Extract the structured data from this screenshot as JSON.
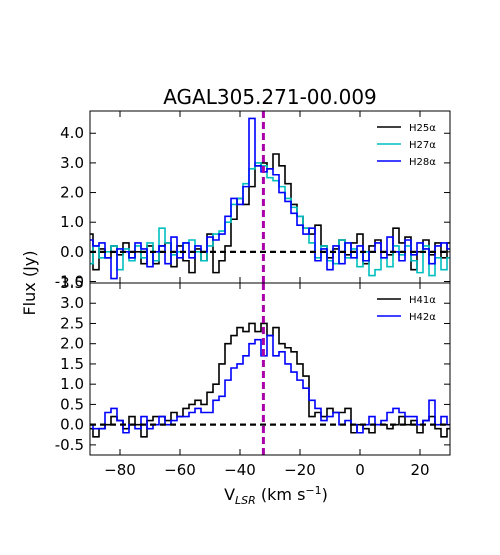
{
  "chart_data": [
    {
      "type": "line",
      "title": "AGAL305.271-00.009",
      "ylabel": "Flux (Jy)",
      "xlim": [
        -90,
        30
      ],
      "ylim": [
        -1.05,
        4.75
      ],
      "yticks": [
        -1.0,
        0.0,
        1.0,
        2.0,
        3.0,
        4.0
      ],
      "ytick_labels": [
        "-1.0",
        "0.0",
        "1.0",
        "2.0",
        "3.0",
        "4.0"
      ],
      "grid": false,
      "legend_position": "top-right",
      "drawstyle": "steps-mid",
      "vline": {
        "x": -32.2,
        "color": "#aa00aa",
        "style": "dashed"
      },
      "hline": {
        "y": 0.0,
        "color": "#000000",
        "style": "dashed"
      },
      "x": [
        -90,
        -88,
        -86,
        -84,
        -82,
        -80,
        -78,
        -76,
        -74,
        -72,
        -70,
        -68,
        -66,
        -64,
        -62,
        -60,
        -58,
        -56,
        -54,
        -52,
        -50,
        -48,
        -46,
        -44,
        -42,
        -40,
        -38,
        -36,
        -34,
        -32,
        -30,
        -28,
        -26,
        -24,
        -22,
        -20,
        -18,
        -16,
        -14,
        -12,
        -10,
        -8,
        -6,
        -4,
        -2,
        0,
        2,
        4,
        6,
        8,
        10,
        12,
        14,
        16,
        18,
        20,
        22,
        24,
        26,
        28,
        30
      ],
      "series": [
        {
          "name": "H25α",
          "color": "#000000",
          "values": [
            0.6,
            -0.6,
            0.1,
            -0.2,
            0.2,
            -0.1,
            0.3,
            -0.2,
            0.0,
            -0.4,
            0.2,
            -0.4,
            0.2,
            0.3,
            -0.5,
            0.2,
            -0.3,
            -0.7,
            0.1,
            -0.3,
            0.6,
            -0.7,
            -0.3,
            0.2,
            1.1,
            1.8,
            1.6,
            2.2,
            2.9,
            3.0,
            2.8,
            3.3,
            2.9,
            2.3,
            1.6,
            1.2,
            0.8,
            0.6,
            0.9,
            0.2,
            -0.2,
            0.1,
            0.4,
            -0.1,
            0.3,
            0.6,
            -0.4,
            0.2,
            0.4,
            0.0,
            -0.1,
            0.8,
            0.3,
            0.5,
            -0.6,
            0.0,
            0.4,
            -0.1,
            0.3,
            -0.2,
            0.3
          ]
        },
        {
          "name": "H27α",
          "color": "#00bfbf",
          "values": [
            -0.4,
            0.2,
            -0.2,
            0.0,
            0.2,
            -0.6,
            0.1,
            -0.3,
            0.2,
            -0.2,
            0.3,
            -0.3,
            0.8,
            0.3,
            -0.1,
            0.0,
            0.3,
            0.4,
            0.0,
            -0.3,
            0.2,
            0.6,
            0.7,
            1.0,
            1.6,
            1.8,
            2.3,
            2.8,
            3.0,
            2.9,
            2.5,
            2.4,
            2.2,
            1.8,
            1.5,
            1.2,
            0.8,
            0.3,
            -0.2,
            0.2,
            -0.3,
            -0.4,
            0.4,
            -0.2,
            0.1,
            -0.5,
            0.0,
            -0.8,
            -0.6,
            -0.2,
            -0.5,
            0.2,
            -0.1,
            0.2,
            -0.3,
            -0.7,
            0.2,
            -0.8,
            -0.2,
            -0.6,
            -0.2
          ]
        },
        {
          "name": "H28α",
          "color": "#0000ff",
          "values": [
            0.4,
            0.2,
            0.3,
            -0.2,
            -0.9,
            0.1,
            0.0,
            -0.2,
            0.3,
            0.1,
            -0.5,
            0.0,
            0.2,
            -0.4,
            0.5,
            -0.2,
            0.3,
            -0.2,
            0.2,
            0.0,
            0.5,
            0.4,
            0.6,
            1.2,
            1.8,
            1.6,
            2.2,
            4.5,
            2.9,
            2.7,
            2.8,
            2.6,
            2.0,
            1.7,
            1.3,
            0.9,
            0.6,
            0.8,
            -0.3,
            0.1,
            -0.6,
            0.2,
            -0.4,
            0.3,
            -0.2,
            0.2,
            -0.3,
            0.0,
            0.3,
            -0.2,
            0.5,
            0.0,
            -0.3,
            0.4,
            -0.1,
            0.3,
            0.1,
            -0.4,
            0.2,
            0.3,
            0.1
          ]
        }
      ]
    },
    {
      "type": "line",
      "xlabel": "V_LSR (km s⁻¹)",
      "xlabel_main": "V",
      "xlabel_sub": "LSR",
      "xlabel_unit": " (km s",
      "xlabel_sup": "−1",
      "xlabel_close": ")",
      "xlim": [
        -90,
        30
      ],
      "ylim": [
        -0.75,
        3.5
      ],
      "xticks": [
        -80,
        -60,
        -40,
        -20,
        0,
        20
      ],
      "xtick_labels": [
        "−80",
        "−60",
        "−40",
        "−20",
        "0",
        "20"
      ],
      "yticks": [
        -0.5,
        0.0,
        0.5,
        1.0,
        1.5,
        2.0,
        2.5,
        3.0,
        3.5
      ],
      "ytick_labels": [
        "-0.5",
        "0.0",
        "0.5",
        "1.0",
        "1.5",
        "2.0",
        "2.5",
        "3.0",
        "3.5"
      ],
      "grid": false,
      "legend_position": "top-right",
      "drawstyle": "steps-mid",
      "vline": {
        "x": -32.2,
        "color": "#aa00aa",
        "style": "dashed"
      },
      "hline": {
        "y": 0.0,
        "color": "#000000",
        "style": "dashed"
      },
      "x": [
        -90,
        -88,
        -86,
        -84,
        -82,
        -80,
        -78,
        -76,
        -74,
        -72,
        -70,
        -68,
        -66,
        -64,
        -62,
        -60,
        -58,
        -56,
        -54,
        -52,
        -50,
        -48,
        -46,
        -44,
        -42,
        -40,
        -38,
        -36,
        -34,
        -32,
        -30,
        -28,
        -26,
        -24,
        -22,
        -20,
        -18,
        -16,
        -14,
        -12,
        -10,
        -8,
        -6,
        -4,
        -2,
        0,
        2,
        4,
        6,
        8,
        10,
        12,
        14,
        16,
        18,
        20,
        22,
        24,
        26,
        28,
        30
      ],
      "series": [
        {
          "name": "H41α",
          "color": "#000000",
          "values": [
            -0.1,
            -0.3,
            -0.1,
            0.0,
            0.2,
            0.1,
            -0.1,
            0.2,
            0.0,
            -0.3,
            0.1,
            0.2,
            0.2,
            0.1,
            0.3,
            0.2,
            0.4,
            0.5,
            0.6,
            0.5,
            0.8,
            1.0,
            1.5,
            2.0,
            2.2,
            2.4,
            2.3,
            2.5,
            2.3,
            2.5,
            2.2,
            2.4,
            2.0,
            1.9,
            1.8,
            1.5,
            1.2,
            0.2,
            0.3,
            0.2,
            0.4,
            0.3,
            0.3,
            0.4,
            -0.2,
            0.0,
            -0.1,
            -0.2,
            0.0,
            0.0,
            -0.1,
            0.0,
            0.2,
            0.0,
            0.1,
            -0.2,
            0.1,
            0.2,
            -0.1,
            -0.3,
            -0.1
          ]
        },
        {
          "name": "H42α",
          "color": "#0000ff",
          "values": [
            0.0,
            -0.1,
            -0.1,
            0.3,
            0.4,
            0.1,
            -0.2,
            0.0,
            -0.1,
            0.2,
            -0.1,
            0.0,
            0.2,
            0.0,
            0.1,
            0.2,
            0.2,
            0.3,
            0.4,
            0.3,
            0.3,
            0.6,
            0.7,
            1.1,
            1.4,
            1.5,
            1.7,
            2.0,
            2.1,
            1.7,
            2.2,
            1.7,
            1.8,
            1.5,
            1.3,
            1.1,
            0.9,
            0.6,
            0.4,
            0.1,
            0.2,
            0.3,
            0.0,
            0.1,
            0.0,
            -0.2,
            0.0,
            0.2,
            0.0,
            0.1,
            0.3,
            0.4,
            0.3,
            0.2,
            0.2,
            0.0,
            0.1,
            0.6,
            0.0,
            0.2,
            0.0
          ]
        }
      ]
    }
  ]
}
